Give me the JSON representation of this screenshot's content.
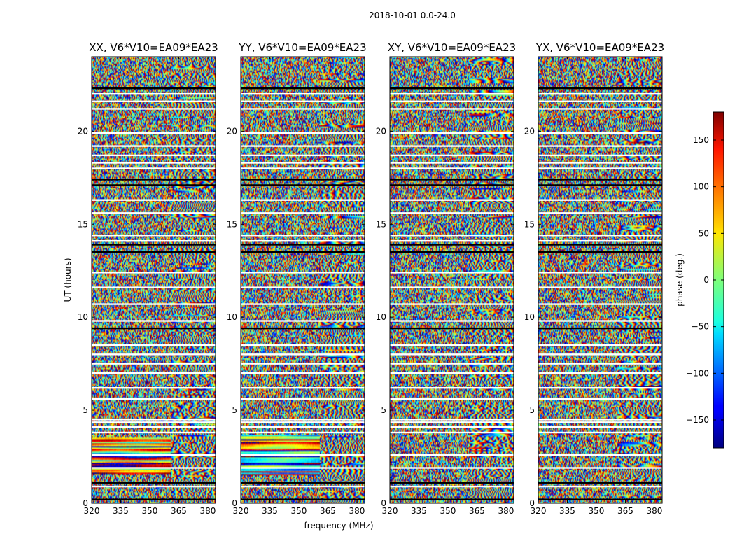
{
  "suptitle": "2018-10-01 0.0-24.0",
  "chart_data": {
    "type": "heatmap",
    "panels": [
      {
        "title": "XX, V6*V10=EA09*EA23",
        "seed": 11,
        "low_band_end_frac": 0.64,
        "low_band_hours": [
          1.6,
          3.5
        ]
      },
      {
        "title": "YY, V6*V10=EA09*EA23",
        "seed": 29,
        "low_band_end_frac": 0.64,
        "low_band_hours": [
          1.5,
          3.7
        ]
      },
      {
        "title": "XY, V6*V10=EA09*EA23",
        "seed": 47,
        "low_band_end_frac": 0.64,
        "low_band_hours": []
      },
      {
        "title": "YX, V6*V10=EA09*EA23",
        "seed": 83,
        "low_band_end_frac": 0.64,
        "low_band_hours": []
      }
    ],
    "xlabel": "frequency (MHz)",
    "ylabel": "UT (hours)",
    "xlim": [
      320,
      384
    ],
    "ylim": [
      0,
      24
    ],
    "xticks": [
      320,
      335,
      350,
      365,
      380
    ],
    "yticks": [
      0,
      5,
      10,
      15,
      20
    ],
    "colorbar": {
      "label": "phase (deg.)",
      "range": [
        -180,
        180
      ],
      "ticks": [
        -150,
        -100,
        -50,
        0,
        50,
        100,
        150
      ],
      "tick_labels": [
        "−150",
        "−100",
        "−50",
        "0",
        "50",
        "100",
        "150"
      ],
      "colormap": "jet"
    },
    "flagged_hours_black": [
      0.2,
      1.1,
      9.4,
      13.5,
      13.9,
      17.1,
      17.4,
      22.3
    ],
    "flagged_hours_white": [
      0.9,
      1.9,
      2.6,
      3.8,
      4.1,
      4.35,
      4.5,
      5.6,
      6.2,
      7.0,
      7.5,
      8.0,
      8.5,
      9.8,
      10.7,
      11.6,
      12.4,
      14.1,
      14.4,
      15.6,
      16.3,
      18.0,
      18.3,
      18.7,
      19.2,
      19.9,
      21.2,
      21.6,
      22.0
    ]
  }
}
